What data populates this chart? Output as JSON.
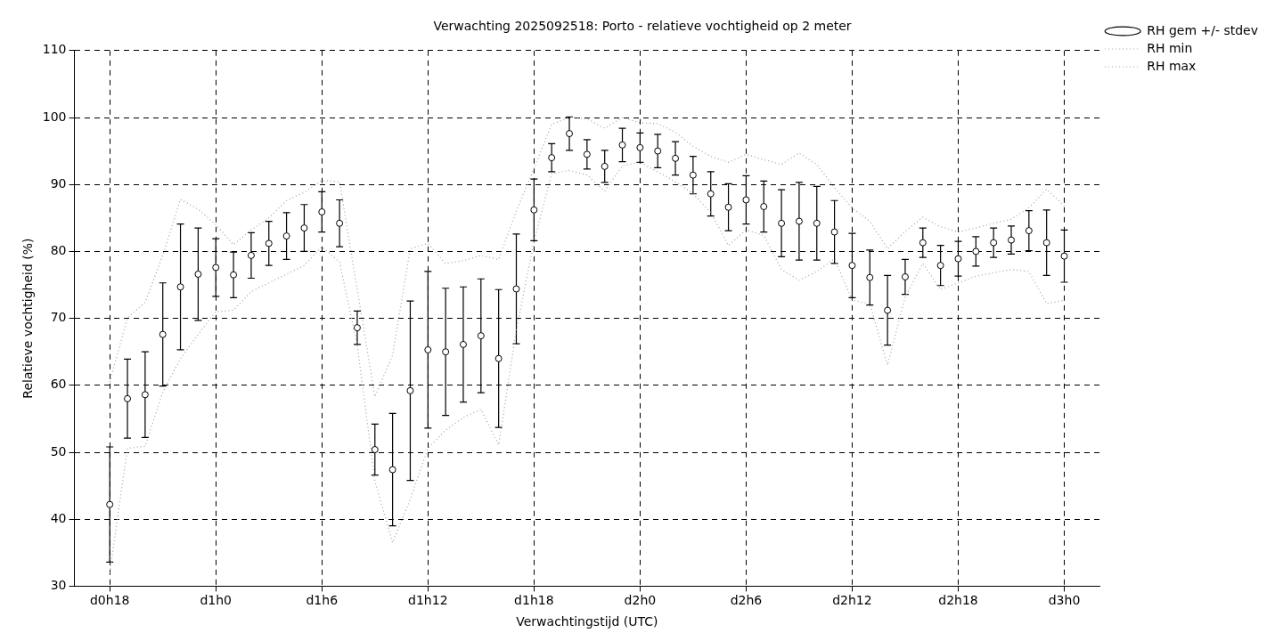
{
  "chart_data": {
    "type": "scatter",
    "title": "Verwachting 2025092518: Porto - relatieve vochtigheid op 2 meter",
    "xlabel": "Verwachtingstijd (UTC)",
    "ylabel": "Relatieve vochtigheid (%)",
    "categories": [
      "d0h18",
      null,
      null,
      null,
      null,
      null,
      "d1h0",
      null,
      null,
      null,
      null,
      null,
      "d1h6",
      null,
      null,
      null,
      null,
      null,
      "d1h12",
      null,
      null,
      null,
      null,
      null,
      "d1h18",
      null,
      null,
      null,
      null,
      null,
      "d2h0",
      null,
      null,
      null,
      null,
      null,
      "d2h6",
      null,
      null,
      null,
      null,
      null,
      "d2h12",
      null,
      null,
      null,
      null,
      null,
      "d2h18",
      null,
      null,
      null,
      null,
      null,
      "d3h0"
    ],
    "ylim": [
      30,
      110
    ],
    "yticks": [
      30,
      40,
      50,
      60,
      70,
      80,
      90,
      100,
      110
    ],
    "grid": true,
    "legend": "top right",
    "series": [
      {
        "name": "RH gem +/- stdev",
        "color": "#000000",
        "marker": "circle",
        "values": [
          42.2,
          58.0,
          58.6,
          67.6,
          74.7,
          76.6,
          77.6,
          76.5,
          79.4,
          81.2,
          82.3,
          83.5,
          85.9,
          84.2,
          68.6,
          50.4,
          47.4,
          59.2,
          65.3,
          65.0,
          66.1,
          67.4,
          64.0,
          74.4,
          86.2,
          94.0,
          97.6,
          94.5,
          92.7,
          95.9,
          95.5,
          95.0,
          93.9,
          91.4,
          88.6,
          86.6,
          87.7,
          86.7,
          84.2,
          84.5,
          84.2,
          82.9,
          77.9,
          76.1,
          71.2,
          76.2,
          81.3,
          77.9,
          78.9,
          80.0,
          81.3,
          81.7,
          83.1,
          81.3,
          79.3
        ],
        "errors": [
          8.6,
          5.9,
          6.4,
          7.7,
          9.4,
          6.9,
          4.3,
          3.4,
          3.4,
          3.3,
          3.5,
          3.5,
          3.0,
          3.5,
          2.5,
          3.8,
          8.4,
          13.4,
          11.7,
          9.5,
          8.6,
          8.5,
          10.3,
          8.2,
          4.6,
          2.1,
          2.5,
          2.2,
          2.4,
          2.5,
          2.2,
          2.5,
          2.5,
          2.8,
          3.3,
          3.5,
          3.6,
          3.8,
          5.0,
          5.8,
          5.5,
          4.7,
          4.8,
          4.1,
          5.2,
          2.6,
          2.2,
          3.0,
          2.6,
          2.2,
          2.2,
          2.1,
          3.0,
          4.9,
          3.9
        ]
      },
      {
        "name": "RH min",
        "type": "line",
        "color": "#a0a0a0",
        "line_style": "dotted",
        "marker": "none",
        "values": [
          32,
          50.6,
          50.9,
          59,
          64,
          67.6,
          71,
          71.2,
          74,
          75.3,
          76.6,
          77.9,
          80.7,
          78.4,
          66,
          45.7,
          36.5,
          43,
          50.6,
          53.3,
          55.2,
          56.4,
          51.1,
          68.2,
          81.5,
          91.6,
          92.1,
          91.4,
          89,
          92.8,
          93.3,
          91.9,
          90.4,
          88.6,
          85.8,
          80.9,
          83.2,
          82.4,
          77.3,
          75.7,
          77,
          78.9,
          72.7,
          72.2,
          63,
          73.2,
          78.2,
          74.3,
          75.3,
          76.3,
          76.8,
          77.3,
          77,
          72.2,
          72.7
        ]
      },
      {
        "name": "RH max",
        "type": "line",
        "color": "#a0a0a0",
        "line_style": "dotted",
        "marker": "none",
        "values": [
          60.5,
          70.1,
          72.4,
          79.4,
          87.8,
          86.3,
          84,
          81,
          83.2,
          85,
          87.6,
          88.8,
          90.6,
          90.4,
          74.3,
          58.3,
          64.5,
          80.4,
          81.2,
          78.2,
          78.6,
          79.4,
          78.8,
          86,
          92.4,
          99,
          100,
          99.8,
          98.4,
          100,
          99.2,
          99.1,
          97.8,
          95.7,
          94.2,
          93.3,
          94.5,
          93.7,
          93,
          94.7,
          93,
          89.5,
          86.5,
          84.5,
          80.4,
          83,
          85.1,
          83.7,
          82.9,
          83.5,
          84.2,
          84.8,
          86.5,
          89.3,
          86.8
        ]
      }
    ]
  }
}
